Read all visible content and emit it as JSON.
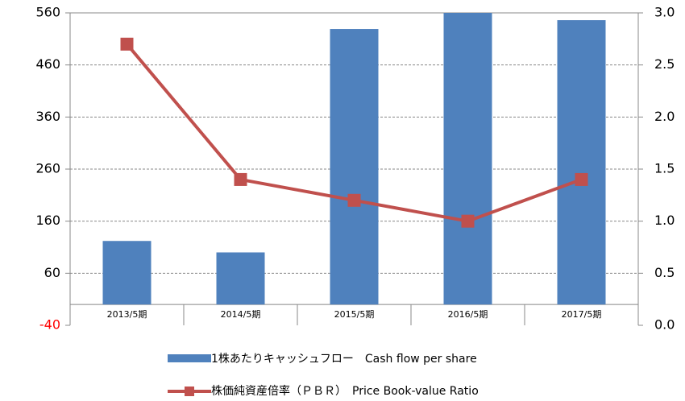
{
  "chart_data": {
    "type": "bar_line",
    "categories": [
      "2013/5期",
      "2014/5期",
      "2015/5期",
      "2016/5期",
      "2017/5期"
    ],
    "series": [
      {
        "name": "1株あたりキャッシュフロー　Cash flow per share",
        "color": "#4f81bd",
        "type": "bar",
        "values": [
          122,
          100,
          529,
          560,
          546
        ]
      },
      {
        "name": "株価純資産倍率（ＰＢＲ）　Price Book-value Ratio",
        "color": "#c0504d",
        "type": "line",
        "axis": "y2",
        "values": [
          2.7,
          1.4,
          1.2,
          1.0,
          1.4
        ]
      }
    ],
    "ylim": [
      -40,
      560
    ],
    "yticks": [
      -40,
      60,
      160,
      260,
      360,
      460,
      560
    ],
    "negative_tick_color": "#ff0000",
    "y2lim": [
      0,
      3
    ],
    "y2ticks": [
      {
        "value": 0,
        "label": "0.0"
      },
      {
        "value": 0.5,
        "label": "0.5"
      },
      {
        "value": 1,
        "label": "1.0"
      },
      {
        "value": 1.5,
        "label": "1.5"
      },
      {
        "value": 2,
        "label": "2.0"
      },
      {
        "value": 2.5,
        "label": "2.5"
      },
      {
        "value": 3,
        "label": "3.0"
      }
    ],
    "grid": true
  }
}
